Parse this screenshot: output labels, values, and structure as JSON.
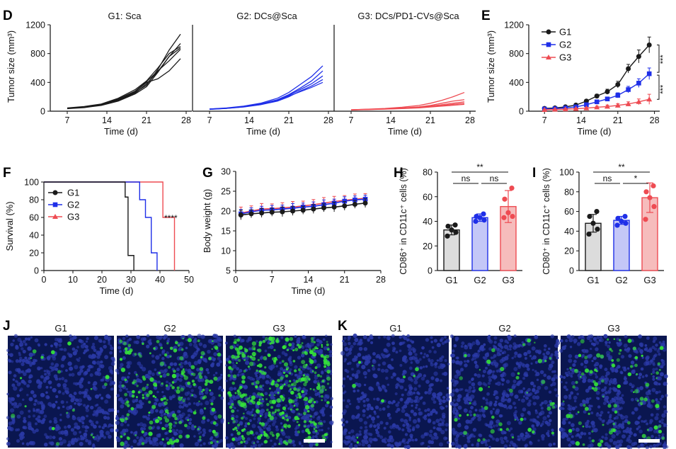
{
  "colors": {
    "g1": "#1a1a1a",
    "g2": "#1f2fe8",
    "g3": "#ee4b52",
    "axis": "#111111",
    "bar_fill_g1": "#dcdcdc",
    "bar_fill_g2": "#c4c7f7",
    "bar_fill_g3": "#f6bcbc",
    "micro_bg": "#0a1650",
    "micro_nuclei": "#2b3aa8",
    "micro_green": "#34e23a"
  },
  "panel_labels": {
    "D": "D",
    "E": "E",
    "F": "F",
    "G": "G",
    "H": "H",
    "I": "I",
    "J": "J",
    "K": "K"
  },
  "chart_data": [
    {
      "id": "D1",
      "type": "line",
      "title": "G1: Sca",
      "xlabel": "Time (d)",
      "ylabel": "Tumor size (mm³)",
      "xlim": [
        4,
        29
      ],
      "ylim": [
        0,
        1200
      ],
      "xticks": [
        7,
        14,
        21,
        28
      ],
      "yticks": [
        0,
        400,
        800,
        1200
      ],
      "x": [
        7,
        10,
        13,
        16,
        19,
        21,
        23,
        25,
        27
      ],
      "series": [
        {
          "values": [
            40,
            55,
            90,
            160,
            260,
            360,
            580,
            850,
            1070
          ]
        },
        {
          "values": [
            35,
            50,
            80,
            140,
            240,
            340,
            540,
            760,
            940
          ]
        },
        {
          "values": [
            45,
            65,
            100,
            180,
            300,
            420,
            600,
            800,
            900
          ]
        },
        {
          "values": [
            38,
            55,
            85,
            150,
            250,
            380,
            550,
            760,
            880
          ]
        },
        {
          "values": [
            40,
            60,
            95,
            170,
            280,
            410,
            560,
            700,
            860
          ]
        },
        {
          "values": [
            42,
            60,
            90,
            160,
            270,
            400,
            450,
            560,
            730
          ]
        }
      ]
    },
    {
      "id": "D2",
      "type": "line",
      "title": "G2: DCs@Sca",
      "xlabel": "Time (d)",
      "ylabel": "",
      "xlim": [
        4,
        29
      ],
      "ylim": [
        0,
        1200
      ],
      "xticks": [
        7,
        14,
        21,
        28
      ],
      "yticks": [],
      "x": [
        7,
        10,
        13,
        16,
        19,
        21,
        23,
        25,
        27
      ],
      "series": [
        {
          "values": [
            30,
            45,
            70,
            110,
            180,
            260,
            370,
            480,
            630
          ]
        },
        {
          "values": [
            28,
            40,
            65,
            100,
            160,
            230,
            320,
            420,
            560
          ]
        },
        {
          "values": [
            30,
            42,
            62,
            95,
            150,
            220,
            300,
            380,
            490
          ]
        },
        {
          "values": [
            25,
            38,
            58,
            90,
            140,
            200,
            280,
            350,
            440
          ]
        },
        {
          "values": [
            27,
            40,
            60,
            92,
            145,
            210,
            270,
            330,
            400
          ]
        }
      ]
    },
    {
      "id": "D3",
      "type": "line",
      "title": "G3: DCs/PD1-CVs@Sca",
      "xlabel": "Time (d)",
      "ylabel": "",
      "xlim": [
        4,
        29
      ],
      "ylim": [
        0,
        1200
      ],
      "xticks": [
        7,
        14,
        21,
        28
      ],
      "yticks": [],
      "x": [
        7,
        10,
        13,
        16,
        19,
        21,
        23,
        25,
        27
      ],
      "series": [
        {
          "values": [
            20,
            28,
            38,
            55,
            80,
            110,
            150,
            200,
            260
          ]
        },
        {
          "values": [
            18,
            25,
            33,
            45,
            60,
            80,
            110,
            140,
            160
          ]
        },
        {
          "values": [
            20,
            26,
            32,
            42,
            55,
            70,
            90,
            110,
            130
          ]
        },
        {
          "values": [
            18,
            24,
            30,
            38,
            50,
            62,
            78,
            95,
            110
          ]
        },
        {
          "values": [
            17,
            22,
            28,
            36,
            46,
            58,
            70,
            82,
            95
          ]
        }
      ]
    },
    {
      "id": "E",
      "type": "line",
      "title": "",
      "xlabel": "Time (d)",
      "ylabel": "Tumor size (mm³)",
      "xlim": [
        4,
        29
      ],
      "ylim": [
        0,
        1200
      ],
      "xticks": [
        7,
        14,
        21,
        28
      ],
      "yticks": [
        0,
        400,
        800,
        1200
      ],
      "x": [
        7,
        9,
        11,
        13,
        15,
        17,
        19,
        21,
        23,
        25,
        27
      ],
      "legend": "top-left",
      "series": [
        {
          "name": "G1",
          "values": [
            38,
            45,
            60,
            85,
            140,
            210,
            270,
            370,
            590,
            760,
            920
          ],
          "errors": [
            10,
            10,
            12,
            15,
            20,
            25,
            35,
            45,
            60,
            90,
            110
          ]
        },
        {
          "name": "G2",
          "values": [
            30,
            35,
            45,
            60,
            90,
            130,
            170,
            220,
            300,
            390,
            520
          ],
          "errors": [
            8,
            8,
            10,
            12,
            18,
            20,
            25,
            35,
            45,
            60,
            80
          ]
        },
        {
          "name": "G3",
          "values": [
            20,
            24,
            28,
            34,
            42,
            55,
            65,
            80,
            100,
            130,
            165
          ],
          "errors": [
            6,
            6,
            7,
            8,
            10,
            15,
            20,
            25,
            30,
            40,
            70
          ]
        }
      ],
      "annotations": [
        "***",
        "***"
      ]
    },
    {
      "id": "F",
      "type": "line",
      "title": "",
      "xlabel": "Time (d)",
      "ylabel": "Survival (%)",
      "xlim": [
        0,
        50
      ],
      "ylim": [
        0,
        100
      ],
      "xticks": [
        0,
        10,
        20,
        30,
        40,
        50
      ],
      "yticks": [
        0,
        20,
        40,
        60,
        80,
        100
      ],
      "legend": "top-left",
      "series": [
        {
          "name": "G1",
          "x": [
            0,
            28,
            28,
            29,
            29,
            30,
            30,
            31,
            31
          ],
          "values": [
            100,
            100,
            83,
            83,
            17,
            17,
            17,
            17,
            0
          ]
        },
        {
          "name": "G2",
          "x": [
            0,
            33,
            33,
            35,
            35,
            37,
            37,
            39,
            39
          ],
          "values": [
            100,
            100,
            80,
            80,
            60,
            60,
            20,
            20,
            0
          ]
        },
        {
          "name": "G3",
          "x": [
            0,
            41,
            41,
            44,
            44,
            45,
            45
          ],
          "values": [
            100,
            100,
            60,
            60,
            60,
            60,
            0
          ]
        }
      ],
      "annotations": [
        "****"
      ]
    },
    {
      "id": "G",
      "type": "line",
      "title": "",
      "xlabel": "Time (d)",
      "ylabel": "Body weight (g)",
      "xlim": [
        0,
        28
      ],
      "ylim": [
        5,
        30
      ],
      "xticks": [
        0,
        7,
        14,
        21,
        28
      ],
      "yticks": [
        5,
        10,
        15,
        20,
        25,
        30
      ],
      "x": [
        1,
        3,
        5,
        7,
        9,
        11,
        13,
        15,
        17,
        19,
        21,
        23,
        25
      ],
      "series": [
        {
          "name": "G1",
          "values": [
            19.0,
            19.3,
            19.5,
            19.7,
            19.8,
            20.0,
            20.2,
            20.5,
            20.8,
            21.0,
            21.3,
            21.7,
            22.0
          ],
          "errors": [
            1.2,
            1.0,
            1.1,
            1.0,
            1.2,
            1.1,
            1.0,
            1.1,
            1.0,
            1.2,
            1.1,
            1.0,
            1.1
          ]
        },
        {
          "name": "G2",
          "values": [
            19.3,
            19.8,
            20.2,
            20.3,
            20.5,
            20.7,
            21.0,
            21.2,
            21.6,
            22.0,
            22.5,
            22.8,
            23.0
          ],
          "errors": [
            1.1,
            1.0,
            1.0,
            1.1,
            1.0,
            1.2,
            1.0,
            1.1,
            1.2,
            1.0,
            1.1,
            1.0,
            1.0
          ]
        },
        {
          "name": "G3",
          "values": [
            19.5,
            20.0,
            20.5,
            20.6,
            20.8,
            21.0,
            21.3,
            21.6,
            22.0,
            22.4,
            22.7,
            23.0,
            23.2
          ],
          "errors": [
            1.5,
            1.3,
            1.4,
            1.2,
            1.3,
            1.4,
            1.2,
            1.3,
            1.4,
            1.3,
            1.2,
            1.3,
            1.2
          ]
        }
      ]
    },
    {
      "id": "H",
      "type": "bar",
      "title": "",
      "xlabel": "",
      "ylabel": "CD86⁺ in CD11c⁺ cells (%)",
      "categories": [
        "G1",
        "G2",
        "G3"
      ],
      "ylim": [
        0,
        80
      ],
      "yticks": [
        0,
        20,
        40,
        60,
        80
      ],
      "values": [
        33,
        43,
        52
      ],
      "errors": [
        4,
        3,
        13
      ],
      "points": [
        [
          28,
          31,
          33,
          36,
          37
        ],
        [
          40,
          41,
          43,
          44,
          46
        ],
        [
          43,
          44,
          47,
          58,
          67
        ]
      ],
      "comparisons": [
        {
          "from": 0,
          "to": 2,
          "label": "**"
        },
        {
          "from": 0,
          "to": 1,
          "label": "ns"
        },
        {
          "from": 1,
          "to": 2,
          "label": "ns"
        }
      ]
    },
    {
      "id": "I",
      "type": "bar",
      "title": "",
      "xlabel": "",
      "ylabel": "CD80⁺ in CD11c⁺ cells (%)",
      "categories": [
        "G1",
        "G2",
        "G3"
      ],
      "ylim": [
        0,
        100
      ],
      "yticks": [
        0,
        20,
        40,
        60,
        80,
        100
      ],
      "values": [
        48,
        51,
        74
      ],
      "errors": [
        9,
        4,
        15
      ],
      "points": [
        [
          37,
          42,
          48,
          55,
          60
        ],
        [
          46,
          48,
          50,
          53,
          55
        ],
        [
          52,
          65,
          74,
          80,
          86
        ]
      ],
      "comparisons": [
        {
          "from": 0,
          "to": 2,
          "label": "**"
        },
        {
          "from": 0,
          "to": 1,
          "label": "ns"
        },
        {
          "from": 1,
          "to": 2,
          "label": "*"
        }
      ]
    }
  ],
  "micrographs": {
    "J": [
      {
        "label": "G1",
        "green_density": 0.02
      },
      {
        "label": "G2",
        "green_density": 0.2
      },
      {
        "label": "G3",
        "green_density": 0.38
      }
    ],
    "K": [
      {
        "label": "G1",
        "green_density": 0.01
      },
      {
        "label": "G2",
        "green_density": 0.05
      },
      {
        "label": "G3",
        "green_density": 0.1
      }
    ]
  }
}
